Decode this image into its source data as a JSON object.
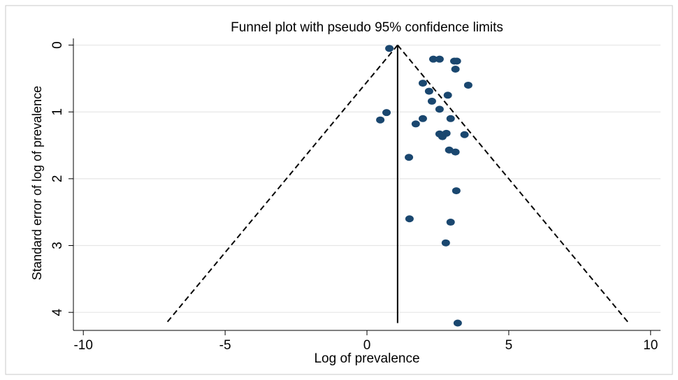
{
  "chart_data": {
    "type": "scatter",
    "title": "Funnel plot with pseudo 95% confidence limits",
    "x_label": "Log of prevalence",
    "y_label": "Standard error of log of prevalence",
    "color": "#1a476f",
    "x": [
      0.79,
      2.34,
      2.56,
      3.08,
      3.17,
      3.12,
      3.57,
      1.97,
      2.19,
      2.85,
      2.29,
      2.56,
      0.69,
      1.97,
      2.95,
      0.47,
      1.72,
      2.56,
      2.8,
      2.66,
      3.44,
      2.9,
      3.12,
      1.48,
      3.15,
      1.5,
      2.95,
      2.78,
      3.2
    ],
    "values": [
      0.05,
      0.21,
      0.21,
      0.24,
      0.24,
      0.36,
      0.6,
      0.57,
      0.69,
      0.75,
      0.84,
      0.96,
      1.01,
      1.1,
      1.1,
      1.12,
      1.18,
      1.33,
      1.32,
      1.37,
      1.34,
      1.57,
      1.6,
      1.68,
      2.18,
      2.6,
      2.65,
      2.96,
      4.16
    ],
    "reference_lines": [
      {
        "x": [
          1.08,
          -7.07
        ],
        "y": [
          0,
          4.16
        ],
        "dashed": true
      },
      {
        "x": [
          1.08,
          9.23
        ],
        "y": [
          0,
          4.16
        ],
        "dashed": true
      },
      {
        "x": [
          1.08,
          1.08
        ],
        "y": [
          0,
          4.16
        ],
        "dashed": false
      }
    ],
    "xlim": [
      -10.35,
      10.35
    ],
    "xticks": [
      -10,
      -5,
      0,
      5,
      10
    ],
    "ylim": [
      -0.1,
      4.27
    ],
    "yticks": [
      0,
      1,
      2,
      3,
      4
    ],
    "y_reversed": true,
    "grid": true
  }
}
